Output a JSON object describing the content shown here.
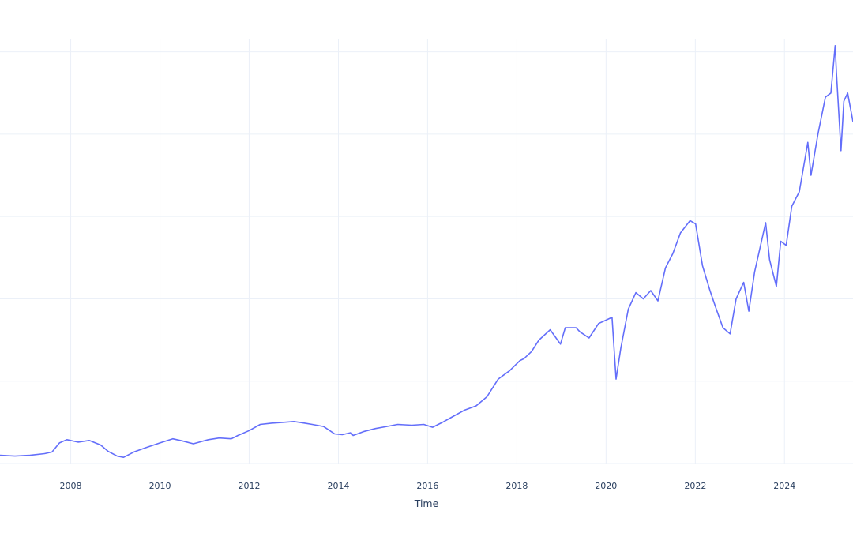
{
  "chart_data": {
    "type": "line",
    "title": "",
    "xlabel": "Time",
    "ylabel": "",
    "x_ticks": [
      "2008",
      "2010",
      "2012",
      "2014",
      "2016",
      "2018",
      "2020",
      "2022",
      "2024"
    ],
    "xlim": [
      "2006-06-01",
      "2025-07-15"
    ],
    "ylim": [
      0,
      1.03
    ],
    "y_gridlines": [
      0,
      0.2,
      0.4,
      0.6,
      0.8,
      1.0
    ],
    "y_tick_labels_visible": false,
    "grid": true,
    "colors": {
      "series": "#636efa",
      "grid": "#ebf0f8",
      "text": "#2a3f5f"
    },
    "series": [
      {
        "name": "",
        "x": [
          "2006-06-01",
          "2006-10-01",
          "2007-02-01",
          "2007-06-01",
          "2007-08-01",
          "2007-10-01",
          "2007-12-01",
          "2008-03-01",
          "2008-06-01",
          "2008-09-01",
          "2008-11-01",
          "2009-01-15",
          "2009-03-09",
          "2009-06-01",
          "2009-09-01",
          "2010-01-01",
          "2010-04-15",
          "2010-07-01",
          "2010-10-01",
          "2011-02-01",
          "2011-05-01",
          "2011-08-08",
          "2011-10-01",
          "2012-01-01",
          "2012-04-01",
          "2012-07-01",
          "2012-10-01",
          "2013-01-01",
          "2013-04-01",
          "2013-06-01",
          "2013-09-01",
          "2013-12-01",
          "2014-02-01",
          "2014-04-15",
          "2014-05-01",
          "2014-08-01",
          "2014-11-01",
          "2015-02-01",
          "2015-05-01",
          "2015-08-25",
          "2015-12-01",
          "2016-02-11",
          "2016-05-01",
          "2016-08-01",
          "2016-11-01",
          "2017-02-01",
          "2017-05-01",
          "2017-08-01",
          "2017-11-01",
          "2018-01-26",
          "2018-03-01",
          "2018-05-01",
          "2018-07-01",
          "2018-10-01",
          "2018-12-24",
          "2019-02-01",
          "2019-04-30",
          "2019-06-01",
          "2019-08-15",
          "2019-11-01",
          "2020-02-19",
          "2020-03-23",
          "2020-05-01",
          "2020-07-01",
          "2020-09-01",
          "2020-11-01",
          "2021-01-01",
          "2021-03-01",
          "2021-05-01",
          "2021-07-01",
          "2021-09-01",
          "2021-11-19",
          "2022-01-03",
          "2022-03-01",
          "2022-05-01",
          "2022-06-16",
          "2022-08-15",
          "2022-10-13",
          "2022-12-01",
          "2023-02-01",
          "2023-03-15",
          "2023-05-01",
          "2023-07-31",
          "2023-09-01",
          "2023-10-27",
          "2023-12-01",
          "2024-01-15",
          "2024-03-01",
          "2024-05-01",
          "2024-07-10",
          "2024-08-05",
          "2024-10-01",
          "2024-12-01",
          "2025-01-15",
          "2025-02-19",
          "2025-03-01",
          "2025-04-08",
          "2025-05-01",
          "2025-06-01",
          "2025-07-15"
        ],
        "y": [
          0.02,
          0.018,
          0.02,
          0.024,
          0.028,
          0.05,
          0.058,
          0.052,
          0.056,
          0.045,
          0.03,
          0.018,
          0.015,
          0.028,
          0.038,
          0.05,
          0.06,
          0.055,
          0.048,
          0.058,
          0.062,
          0.06,
          0.068,
          0.08,
          0.095,
          0.098,
          0.1,
          0.102,
          0.098,
          0.095,
          0.09,
          0.072,
          0.07,
          0.075,
          0.068,
          0.078,
          0.085,
          0.09,
          0.095,
          0.093,
          0.095,
          0.088,
          0.1,
          0.115,
          0.13,
          0.14,
          0.162,
          0.205,
          0.225,
          0.25,
          0.255,
          0.272,
          0.3,
          0.325,
          0.29,
          0.33,
          0.33,
          0.32,
          0.305,
          0.34,
          0.355,
          0.205,
          0.28,
          0.375,
          0.415,
          0.4,
          0.42,
          0.395,
          0.475,
          0.51,
          0.56,
          0.59,
          0.582,
          0.48,
          0.42,
          0.38,
          0.33,
          0.315,
          0.4,
          0.44,
          0.37,
          0.465,
          0.585,
          0.495,
          0.43,
          0.54,
          0.53,
          0.625,
          0.66,
          0.78,
          0.7,
          0.8,
          0.89,
          0.9,
          1.015,
          0.95,
          0.76,
          0.88,
          0.9,
          0.83
        ]
      }
    ]
  }
}
